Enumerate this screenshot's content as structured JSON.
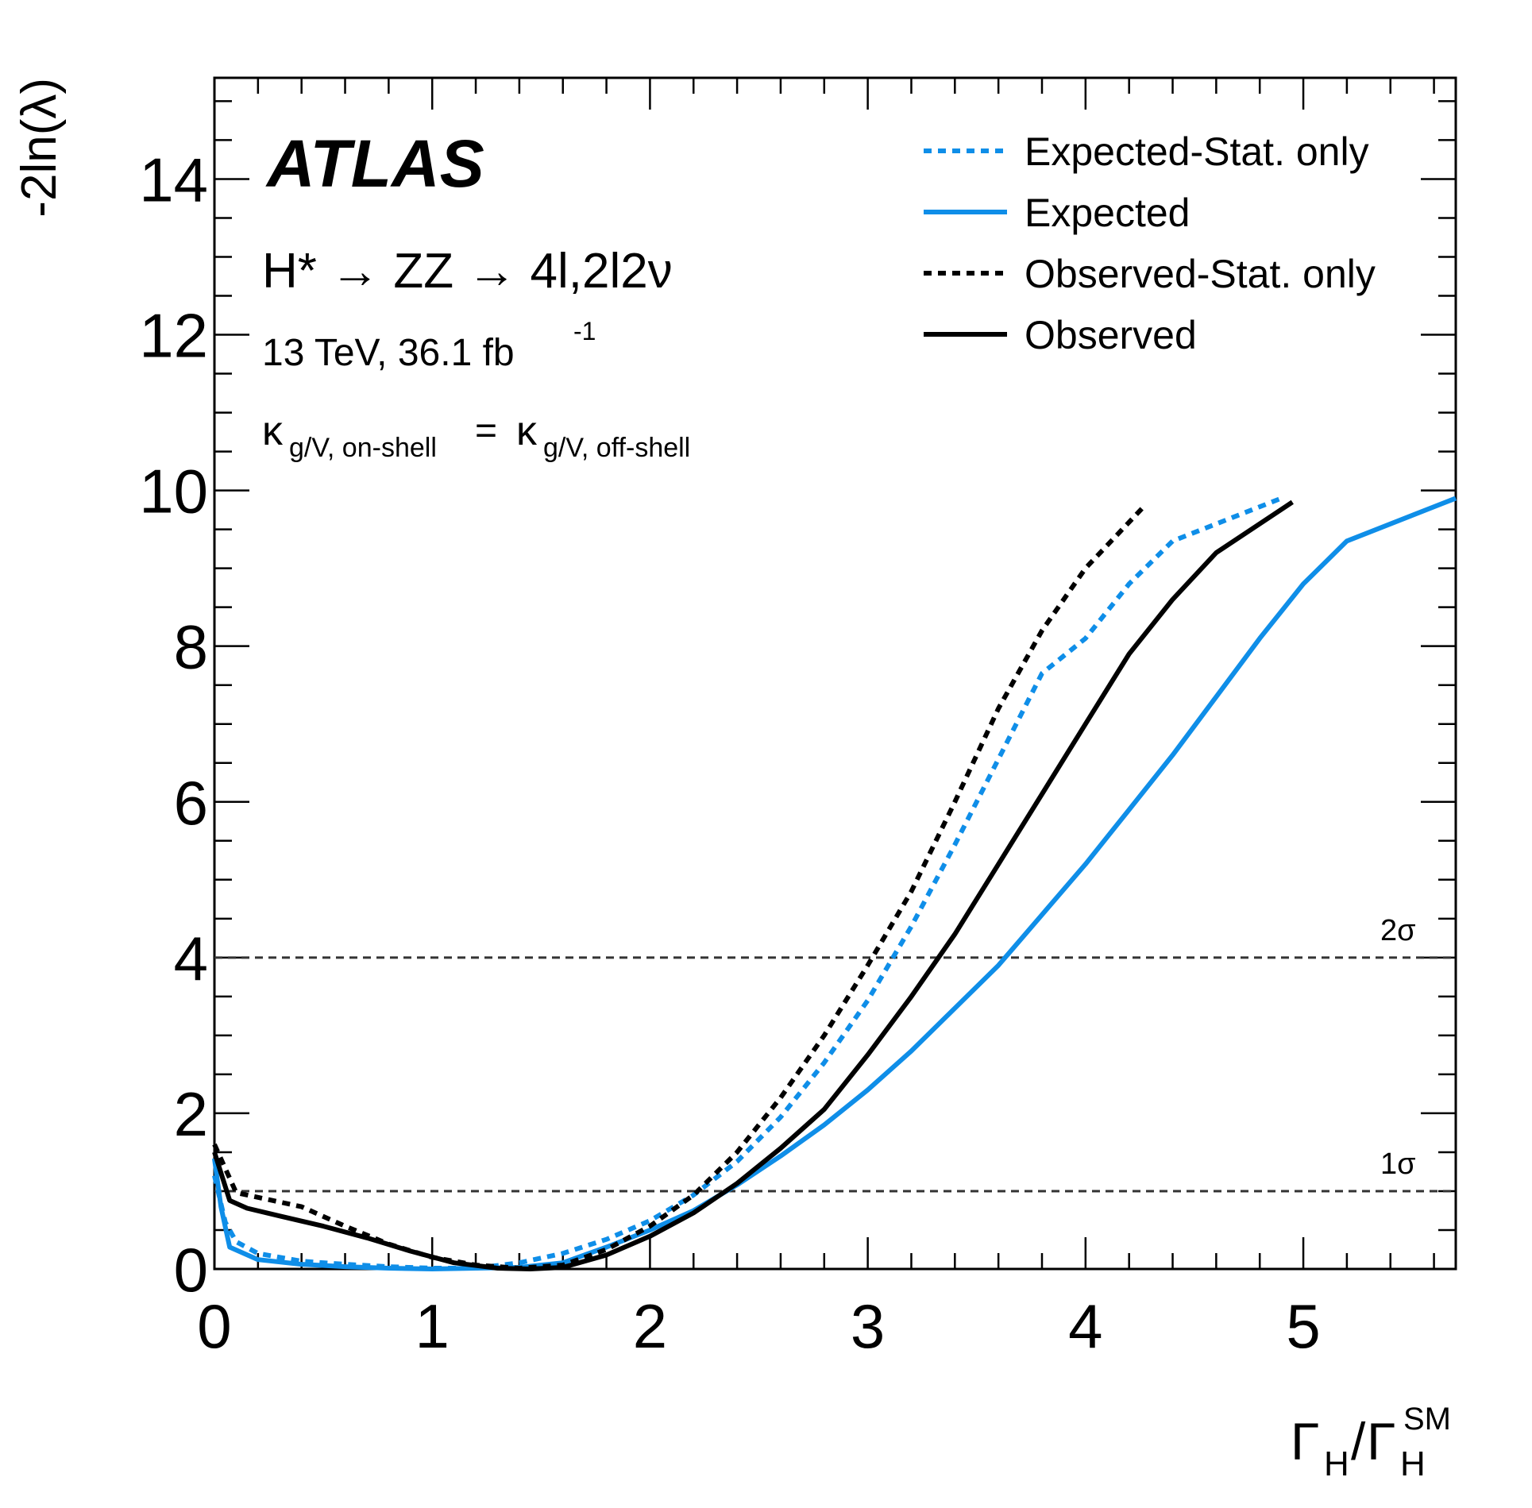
{
  "chart_data": {
    "type": "line",
    "xlabel": {
      "base": "Γ",
      "sub": "H",
      "sep": "/",
      "base2": "Γ",
      "sub2": "H",
      "sup2": "SM"
    },
    "ylabel": "-2ln(λ)",
    "xlim": [
      0,
      5.7
    ],
    "ylim": [
      0,
      15.3
    ],
    "x_ticks": [
      0,
      1,
      2,
      3,
      4,
      5
    ],
    "x_tick_labels": [
      "0",
      "1",
      "2",
      "3",
      "4",
      "5"
    ],
    "y_ticks": [
      0,
      2,
      4,
      6,
      8,
      10,
      12,
      14
    ],
    "y_tick_labels": [
      "0",
      "2",
      "4",
      "6",
      "8",
      "10",
      "12",
      "14"
    ],
    "annotations": {
      "experiment": "ATLAS",
      "process": "H* → ZZ → 4l,2l2ν",
      "energy": "13 TeV, 36.1 fb",
      "energy_sup": "-1",
      "kappa_base": "κ",
      "kappa_sub_left": "g/V, on-shell",
      "kappa_eq": "=",
      "kappa_sub_right": "g/V, off-shell"
    },
    "reference_lines": [
      {
        "label": "1σ",
        "y": 1
      },
      {
        "label": "2σ",
        "y": 4
      }
    ],
    "legend_position": "top-right",
    "series": [
      {
        "name": "Expected-Stat. only",
        "color": "#0f8ee8",
        "dash": true,
        "points": [
          [
            0,
            1.2
          ],
          [
            0.05,
            0.6
          ],
          [
            0.1,
            0.35
          ],
          [
            0.2,
            0.2
          ],
          [
            0.4,
            0.1
          ],
          [
            0.6,
            0.06
          ],
          [
            0.8,
            0.03
          ],
          [
            1.0,
            0.01
          ],
          [
            1.2,
            0.01
          ],
          [
            1.4,
            0.08
          ],
          [
            1.6,
            0.2
          ],
          [
            1.8,
            0.38
          ],
          [
            2.0,
            0.62
          ],
          [
            2.2,
            0.95
          ],
          [
            2.4,
            1.38
          ],
          [
            2.6,
            1.95
          ],
          [
            2.8,
            2.65
          ],
          [
            3.0,
            3.45
          ],
          [
            3.2,
            4.4
          ],
          [
            3.4,
            5.45
          ],
          [
            3.6,
            6.55
          ],
          [
            3.8,
            7.65
          ],
          [
            4.0,
            8.1
          ],
          [
            4.2,
            8.8
          ],
          [
            4.4,
            9.35
          ],
          [
            4.9,
            9.9
          ]
        ]
      },
      {
        "name": "Expected",
        "color": "#0f8ee8",
        "dash": false,
        "points": [
          [
            0,
            1.42
          ],
          [
            0.03,
            0.8
          ],
          [
            0.07,
            0.28
          ],
          [
            0.2,
            0.12
          ],
          [
            0.4,
            0.06
          ],
          [
            0.6,
            0.03
          ],
          [
            0.8,
            0.01
          ],
          [
            1.0,
            0.0
          ],
          [
            1.2,
            0.01
          ],
          [
            1.4,
            0.02
          ],
          [
            1.6,
            0.08
          ],
          [
            1.8,
            0.28
          ],
          [
            2.0,
            0.5
          ],
          [
            2.2,
            0.75
          ],
          [
            2.4,
            1.08
          ],
          [
            2.6,
            1.45
          ],
          [
            2.8,
            1.85
          ],
          [
            3.0,
            2.3
          ],
          [
            3.2,
            2.8
          ],
          [
            3.4,
            3.35
          ],
          [
            3.6,
            3.9
          ],
          [
            3.8,
            4.55
          ],
          [
            4.0,
            5.2
          ],
          [
            4.2,
            5.9
          ],
          [
            4.4,
            6.6
          ],
          [
            4.6,
            7.35
          ],
          [
            4.8,
            8.1
          ],
          [
            5.0,
            8.8
          ],
          [
            5.2,
            9.35
          ],
          [
            5.7,
            9.9
          ]
        ]
      },
      {
        "name": "Observed-Stat. only",
        "color": "#000000",
        "dash": true,
        "points": [
          [
            0,
            1.6
          ],
          [
            0.1,
            0.98
          ],
          [
            0.2,
            0.92
          ],
          [
            0.4,
            0.8
          ],
          [
            0.6,
            0.55
          ],
          [
            0.8,
            0.32
          ],
          [
            1.0,
            0.15
          ],
          [
            1.2,
            0.05
          ],
          [
            1.4,
            0.01
          ],
          [
            1.6,
            0.05
          ],
          [
            1.8,
            0.25
          ],
          [
            2.0,
            0.55
          ],
          [
            2.2,
            0.95
          ],
          [
            2.4,
            1.5
          ],
          [
            2.6,
            2.2
          ],
          [
            2.8,
            3.0
          ],
          [
            3.0,
            3.9
          ],
          [
            3.2,
            4.85
          ],
          [
            3.4,
            6.0
          ],
          [
            3.6,
            7.2
          ],
          [
            3.8,
            8.2
          ],
          [
            4.0,
            9.0
          ],
          [
            4.27,
            9.8
          ]
        ]
      },
      {
        "name": "Observed",
        "color": "#000000",
        "dash": false,
        "points": [
          [
            0,
            1.5
          ],
          [
            0.07,
            0.88
          ],
          [
            0.15,
            0.78
          ],
          [
            0.3,
            0.68
          ],
          [
            0.5,
            0.55
          ],
          [
            0.7,
            0.4
          ],
          [
            0.9,
            0.23
          ],
          [
            1.1,
            0.08
          ],
          [
            1.3,
            0.01
          ],
          [
            1.45,
            0.0
          ],
          [
            1.6,
            0.02
          ],
          [
            1.8,
            0.18
          ],
          [
            2.0,
            0.42
          ],
          [
            2.2,
            0.72
          ],
          [
            2.4,
            1.1
          ],
          [
            2.6,
            1.55
          ],
          [
            2.8,
            2.05
          ],
          [
            3.0,
            2.75
          ],
          [
            3.2,
            3.5
          ],
          [
            3.4,
            4.3
          ],
          [
            3.6,
            5.2
          ],
          [
            3.8,
            6.1
          ],
          [
            4.0,
            7.0
          ],
          [
            4.2,
            7.9
          ],
          [
            4.4,
            8.6
          ],
          [
            4.6,
            9.2
          ],
          [
            4.95,
            9.85
          ]
        ]
      }
    ]
  }
}
